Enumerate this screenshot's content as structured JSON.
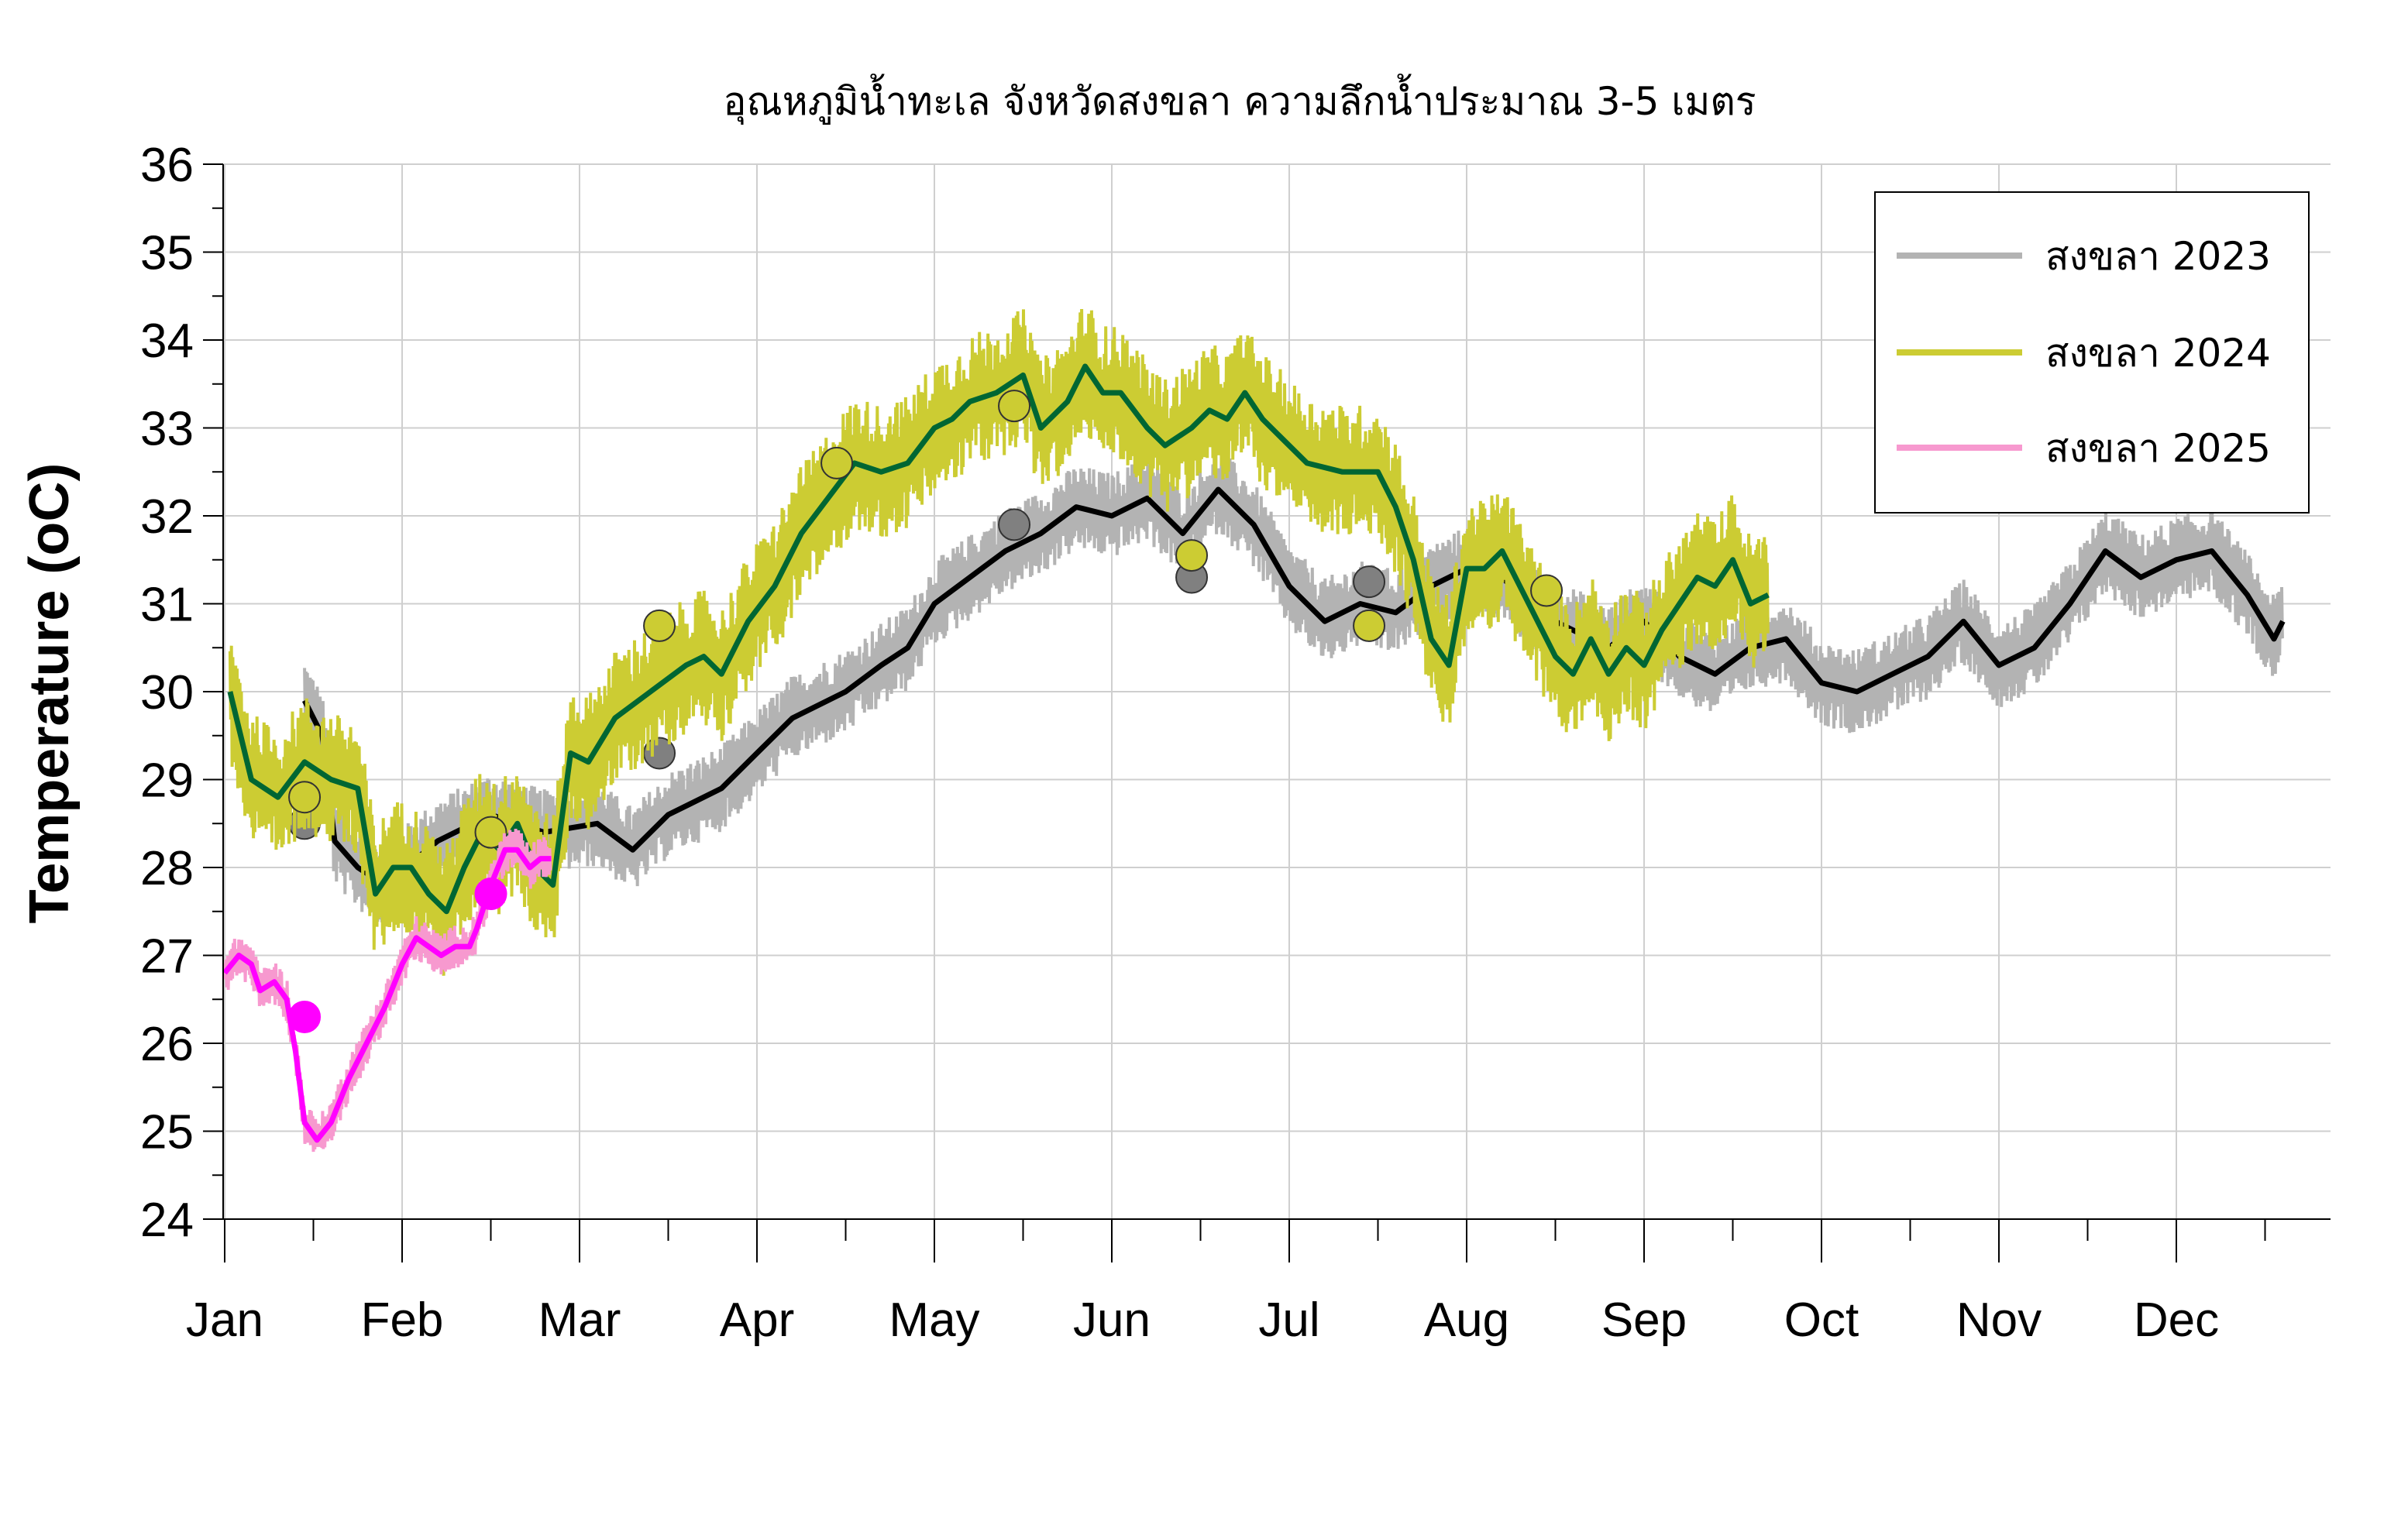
{
  "chart_data": {
    "type": "line",
    "title": "อุณหภูมิน้ำทะเล จังหวัดสงขลา ความลึกน้ำประมาณ 3-5 เมตร",
    "xlabel": "",
    "ylabel": "Temperature (oC)",
    "ylim": [
      24,
      36
    ],
    "yticks": [
      "24",
      "25",
      "26",
      "27",
      "28",
      "29",
      "30",
      "31",
      "32",
      "33",
      "34",
      "35",
      "36"
    ],
    "xlim": [
      0,
      12.2
    ],
    "month_ticks": [
      "Jan",
      "Feb",
      "Mar",
      "Apr",
      "May",
      "Jun",
      "Jul",
      "Aug",
      "Sep",
      "Oct",
      "Nov",
      "Dec"
    ],
    "grid": true,
    "legend_position": "top-right",
    "series": [
      {
        "name": "สงขลา 2023",
        "color_raw": "#b3b3b3",
        "color_mean": "#000000",
        "point_color": "#808080",
        "noise": 0.35,
        "mean": [
          [
            0.45,
            29.9
          ],
          [
            0.55,
            29.5
          ],
          [
            0.62,
            28.3
          ],
          [
            0.75,
            28.0
          ],
          [
            0.9,
            27.8
          ],
          [
            1.2,
            28.3
          ],
          [
            1.5,
            28.6
          ],
          [
            1.8,
            28.4
          ],
          [
            2.1,
            28.5
          ],
          [
            2.3,
            28.2
          ],
          [
            2.5,
            28.6
          ],
          [
            2.8,
            28.9
          ],
          [
            3.0,
            29.3
          ],
          [
            3.2,
            29.7
          ],
          [
            3.5,
            30.0
          ],
          [
            3.7,
            30.3
          ],
          [
            3.85,
            30.5
          ],
          [
            4.0,
            31.0
          ],
          [
            4.2,
            31.3
          ],
          [
            4.4,
            31.6
          ],
          [
            4.6,
            31.8
          ],
          [
            4.8,
            32.1
          ],
          [
            5.0,
            32.0
          ],
          [
            5.2,
            32.2
          ],
          [
            5.4,
            31.8
          ],
          [
            5.6,
            32.3
          ],
          [
            5.8,
            31.9
          ],
          [
            6.0,
            31.2
          ],
          [
            6.2,
            30.8
          ],
          [
            6.4,
            31.0
          ],
          [
            6.6,
            30.9
          ],
          [
            6.8,
            31.2
          ],
          [
            7.0,
            31.4
          ],
          [
            7.2,
            31.3
          ],
          [
            7.4,
            30.9
          ],
          [
            7.6,
            30.7
          ],
          [
            7.8,
            30.5
          ],
          [
            8.0,
            30.8
          ],
          [
            8.2,
            30.4
          ],
          [
            8.4,
            30.2
          ],
          [
            8.6,
            30.5
          ],
          [
            8.8,
            30.6
          ],
          [
            9.0,
            30.1
          ],
          [
            9.2,
            30.0
          ],
          [
            9.4,
            30.2
          ],
          [
            9.6,
            30.4
          ],
          [
            9.8,
            30.8
          ],
          [
            10.0,
            30.3
          ],
          [
            10.2,
            30.5
          ],
          [
            10.4,
            31.0
          ],
          [
            10.6,
            31.6
          ],
          [
            10.8,
            31.3
          ],
          [
            11.0,
            31.5
          ],
          [
            11.2,
            31.6
          ],
          [
            11.4,
            31.1
          ],
          [
            11.55,
            30.6
          ],
          [
            11.6,
            30.8
          ]
        ],
        "points": [
          [
            0.45,
            28.5
          ],
          [
            2.45,
            29.3
          ],
          [
            4.45,
            31.9
          ],
          [
            5.45,
            31.3
          ],
          [
            6.45,
            31.25
          ]
        ]
      },
      {
        "name": "สงขลา 2024",
        "color_raw": "#cccc33",
        "color_mean": "#006633",
        "point_color": "#cccc33",
        "noise": 0.55,
        "mean": [
          [
            0.03,
            30.0
          ],
          [
            0.15,
            29.0
          ],
          [
            0.3,
            28.8
          ],
          [
            0.45,
            29.2
          ],
          [
            0.6,
            29.0
          ],
          [
            0.75,
            28.9
          ],
          [
            0.85,
            27.7
          ],
          [
            0.95,
            28.0
          ],
          [
            1.05,
            28.0
          ],
          [
            1.15,
            27.7
          ],
          [
            1.25,
            27.5
          ],
          [
            1.35,
            28.0
          ],
          [
            1.45,
            28.4
          ],
          [
            1.55,
            28.2
          ],
          [
            1.65,
            28.5
          ],
          [
            1.75,
            28.0
          ],
          [
            1.85,
            27.8
          ],
          [
            1.95,
            29.3
          ],
          [
            2.05,
            29.2
          ],
          [
            2.2,
            29.7
          ],
          [
            2.4,
            30.0
          ],
          [
            2.6,
            30.3
          ],
          [
            2.7,
            30.4
          ],
          [
            2.8,
            30.2
          ],
          [
            2.95,
            30.8
          ],
          [
            3.1,
            31.2
          ],
          [
            3.25,
            31.8
          ],
          [
            3.4,
            32.2
          ],
          [
            3.55,
            32.6
          ],
          [
            3.7,
            32.5
          ],
          [
            3.85,
            32.6
          ],
          [
            4.0,
            33.0
          ],
          [
            4.1,
            33.1
          ],
          [
            4.2,
            33.3
          ],
          [
            4.35,
            33.4
          ],
          [
            4.5,
            33.6
          ],
          [
            4.6,
            33.0
          ],
          [
            4.75,
            33.3
          ],
          [
            4.85,
            33.7
          ],
          [
            4.95,
            33.4
          ],
          [
            5.05,
            33.4
          ],
          [
            5.2,
            33.0
          ],
          [
            5.3,
            32.8
          ],
          [
            5.45,
            33.0
          ],
          [
            5.55,
            33.2
          ],
          [
            5.65,
            33.1
          ],
          [
            5.75,
            33.4
          ],
          [
            5.85,
            33.1
          ],
          [
            5.95,
            32.9
          ],
          [
            6.1,
            32.6
          ],
          [
            6.3,
            32.5
          ],
          [
            6.5,
            32.5
          ],
          [
            6.6,
            32.1
          ],
          [
            6.7,
            31.5
          ],
          [
            6.8,
            30.6
          ],
          [
            6.9,
            30.3
          ],
          [
            7.0,
            31.4
          ],
          [
            7.1,
            31.4
          ],
          [
            7.2,
            31.6
          ],
          [
            7.3,
            31.2
          ],
          [
            7.4,
            30.8
          ],
          [
            7.5,
            30.4
          ],
          [
            7.6,
            30.2
          ],
          [
            7.7,
            30.6
          ],
          [
            7.8,
            30.2
          ],
          [
            7.9,
            30.5
          ],
          [
            8.0,
            30.3
          ],
          [
            8.1,
            30.7
          ],
          [
            8.2,
            31.0
          ],
          [
            8.3,
            31.3
          ],
          [
            8.4,
            31.2
          ],
          [
            8.5,
            31.5
          ],
          [
            8.6,
            31.0
          ],
          [
            8.7,
            31.1
          ]
        ],
        "points": [
          [
            0.45,
            28.8
          ],
          [
            1.5,
            28.4
          ],
          [
            2.45,
            30.75
          ],
          [
            3.45,
            32.6
          ],
          [
            4.45,
            33.25
          ],
          [
            5.45,
            31.55
          ],
          [
            6.45,
            30.75
          ],
          [
            7.45,
            31.15
          ]
        ]
      },
      {
        "name": "สงขลา 2025",
        "color_raw": "#f799cf",
        "color_mean": "#ff00ff",
        "point_color": "#ff00ff",
        "noise": 0.18,
        "mean": [
          [
            0.0,
            26.8
          ],
          [
            0.08,
            27.0
          ],
          [
            0.15,
            26.9
          ],
          [
            0.2,
            26.6
          ],
          [
            0.28,
            26.7
          ],
          [
            0.35,
            26.5
          ],
          [
            0.4,
            25.9
          ],
          [
            0.45,
            25.1
          ],
          [
            0.52,
            24.9
          ],
          [
            0.6,
            25.1
          ],
          [
            0.7,
            25.6
          ],
          [
            0.8,
            26.0
          ],
          [
            0.9,
            26.4
          ],
          [
            1.0,
            26.9
          ],
          [
            1.08,
            27.2
          ],
          [
            1.15,
            27.1
          ],
          [
            1.22,
            27.0
          ],
          [
            1.3,
            27.1
          ],
          [
            1.38,
            27.1
          ],
          [
            1.42,
            27.3
          ],
          [
            1.5,
            27.8
          ],
          [
            1.58,
            28.2
          ],
          [
            1.65,
            28.2
          ],
          [
            1.72,
            28.0
          ],
          [
            1.78,
            28.1
          ],
          [
            1.84,
            28.1
          ]
        ],
        "points": [
          [
            0.45,
            26.3
          ],
          [
            1.5,
            27.7
          ]
        ]
      }
    ]
  }
}
